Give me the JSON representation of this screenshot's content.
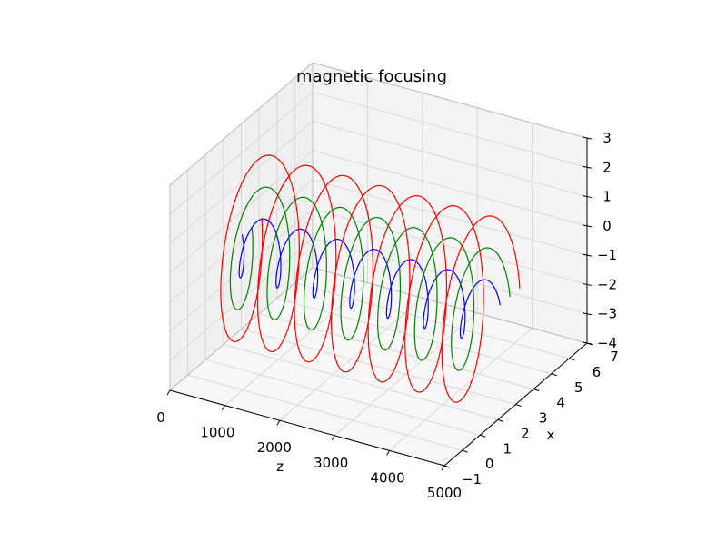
{
  "chart_data": {
    "type": "line",
    "projection": "3d",
    "title": "magnetic focusing",
    "xlabel": "z",
    "ylabel": "x",
    "zlabel": "",
    "xlim": [
      0,
      5000
    ],
    "ylim": [
      -1,
      7
    ],
    "zlim": [
      -4,
      3
    ],
    "x_ticks": [
      "0",
      "1000",
      "2000",
      "3000",
      "4000",
      "5000"
    ],
    "y_ticks": [
      "−1",
      "0",
      "1",
      "2",
      "3",
      "4",
      "5",
      "6",
      "7"
    ],
    "z_ticks": [
      "−4",
      "−3",
      "−2",
      "−1",
      "0",
      "1",
      "2",
      "3"
    ],
    "grid": true,
    "pane_color": "#f0f0f0",
    "grid_color": "#d8d8d8",
    "series": [
      {
        "color": "#0000ff",
        "radius": 1,
        "turns": 7,
        "z_range": [
          0,
          4700
        ]
      },
      {
        "color": "#008000",
        "radius": 2,
        "turns": 7,
        "z_range": [
          0,
          4700
        ]
      },
      {
        "color": "#ff0000",
        "radius": 3,
        "turns": 7,
        "z_range": [
          0,
          4700
        ]
      }
    ]
  }
}
